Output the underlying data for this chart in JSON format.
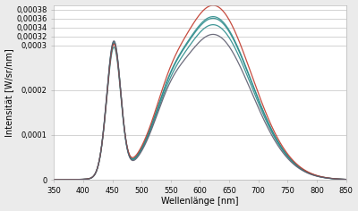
{
  "xlabel": "Wellenlänge [nm]",
  "ylabel": "Intensität [W/sr/nm]",
  "xlim": [
    350,
    850
  ],
  "ylim": [
    0,
    0.00039
  ],
  "xtick_positions": [
    350,
    400,
    450,
    500,
    550,
    600,
    650,
    700,
    750,
    800,
    850
  ],
  "ytick_positions": [
    0,
    0.0001,
    0.0002,
    0.0003,
    0.00032,
    0.00034,
    0.00036,
    0.00038
  ],
  "ytick_labels": [
    "0",
    "0,0001",
    "0,0002",
    "0,0003",
    "0,00032",
    "0,00034",
    "0,00036",
    "0,00038"
  ],
  "figure_facecolor": "#ebebeb",
  "axes_facecolor": "#ffffff",
  "grid_color": "#c8c8c8",
  "line_specs": [
    {
      "color": "#2b8b8b",
      "lw": 0.9,
      "blue_scale": 1.0,
      "red_scale": 1.0,
      "green_scale": 1.0
    },
    {
      "color": "#2b8b8b",
      "lw": 0.9,
      "blue_scale": 0.97,
      "red_scale": 0.96,
      "green_scale": 0.97
    },
    {
      "color": "#2b8b8b",
      "lw": 0.9,
      "blue_scale": 1.01,
      "red_scale": 1.01,
      "green_scale": 1.01
    },
    {
      "color": "#c0392b",
      "lw": 0.9,
      "blue_scale": 0.99,
      "red_scale": 1.08,
      "green_scale": 1.0
    },
    {
      "color": "#5c5c6e",
      "lw": 0.9,
      "blue_scale": 1.02,
      "red_scale": 0.9,
      "green_scale": 1.02
    }
  ],
  "label_fontsize": 7,
  "tick_fontsize": 6
}
